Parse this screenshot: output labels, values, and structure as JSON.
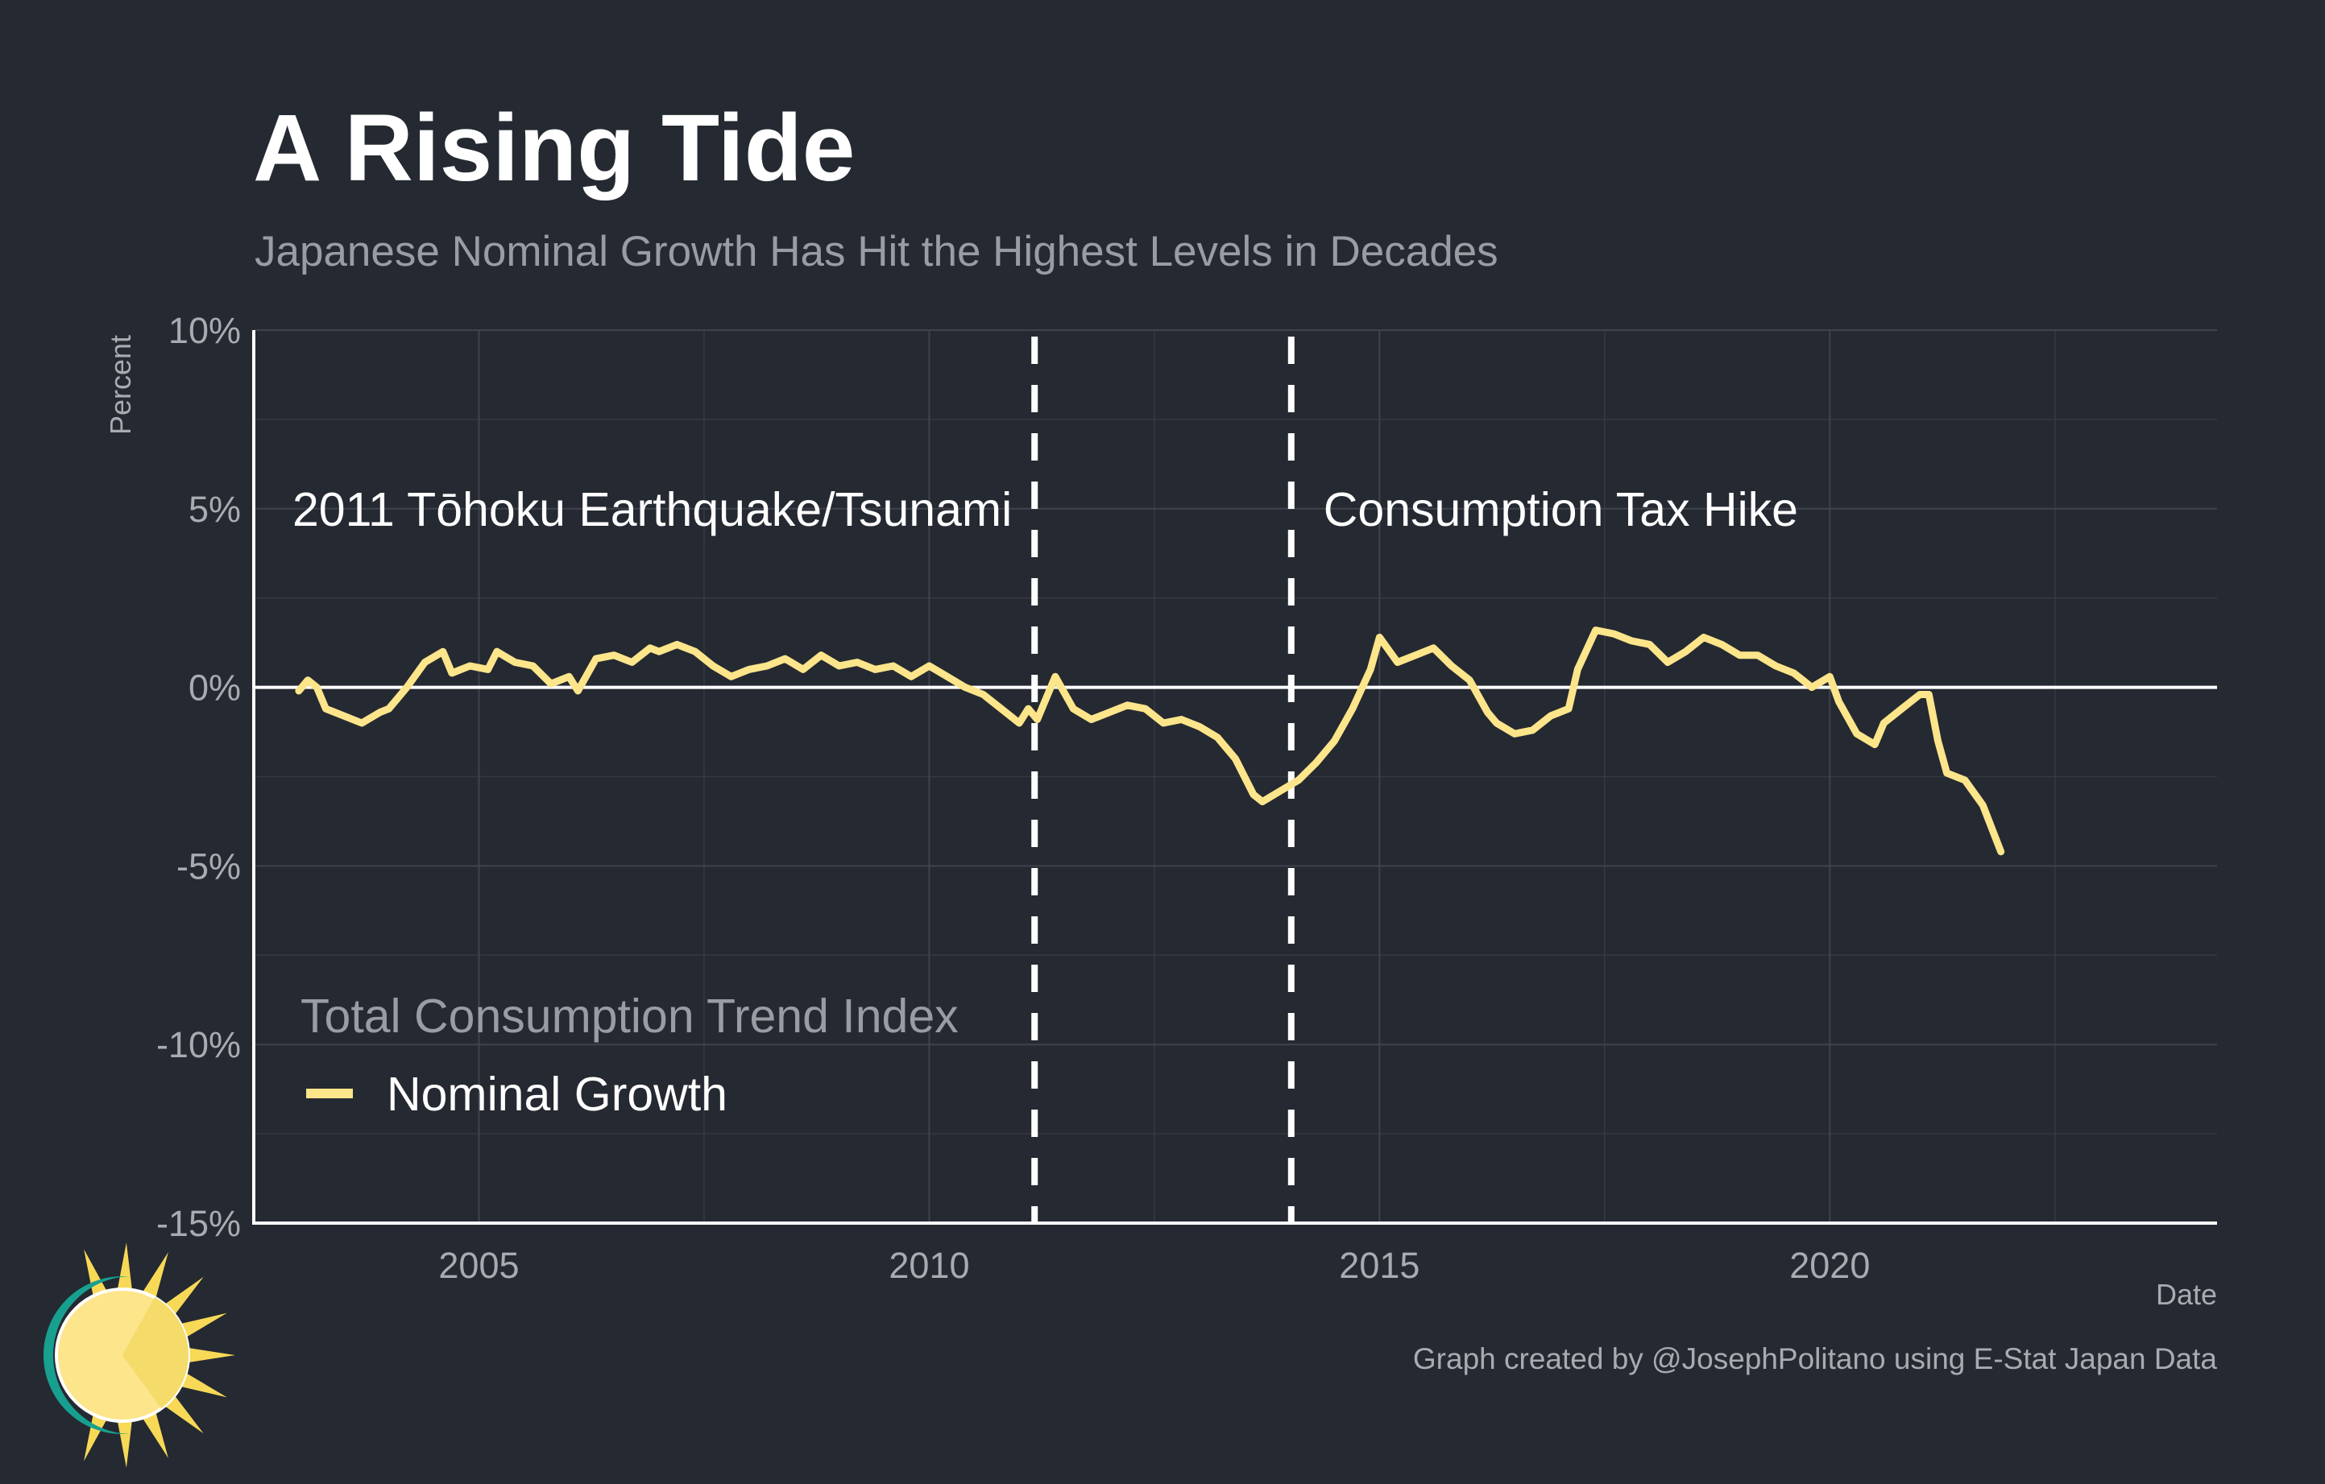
{
  "chart_data": {
    "type": "line",
    "title": "A Rising Tide",
    "subtitle": "Japanese Nominal Growth Has Hit the Highest Levels in Decades",
    "xlabel": "Date",
    "ylabel": "Percent",
    "caption": "Graph created by @JosephPolitano using E-Stat Japan Data",
    "xlim": [
      2002.5,
      2024.3
    ],
    "ylim": [
      -15,
      10
    ],
    "x_ticks": [
      {
        "value": 2005,
        "label": "2005"
      },
      {
        "value": 2010,
        "label": "2010"
      },
      {
        "value": 2015,
        "label": "2015"
      },
      {
        "value": 2020,
        "label": "2020"
      }
    ],
    "y_ticks": [
      {
        "value": 10,
        "label": "10%"
      },
      {
        "value": 5,
        "label": "5%"
      },
      {
        "value": 0,
        "label": "0%"
      },
      {
        "value": -5,
        "label": "-5%"
      },
      {
        "value": -10,
        "label": "-10%"
      },
      {
        "value": -15,
        "label": "-15%"
      }
    ],
    "grid": true,
    "legend": {
      "title": "Total Consumption Trend Index",
      "placement": "bottom-left"
    },
    "annotations": [
      {
        "x": 2011.17,
        "label": "2011 Tōhoku Earthquake/Tsunami",
        "label_side": "left"
      },
      {
        "x": 2014.02,
        "label": "Consumption Tax Hike",
        "label_side": "right"
      }
    ],
    "series": [
      {
        "name": "Nominal Growth",
        "color": "#fce58a",
        "points": [
          [
            2003.0,
            -0.1
          ],
          [
            2003.1,
            0.2
          ],
          [
            2003.2,
            0.0
          ],
          [
            2003.3,
            -0.6
          ],
          [
            2003.5,
            -0.8
          ],
          [
            2003.7,
            -1.0
          ],
          [
            2003.9,
            -0.7
          ],
          [
            2004.0,
            -0.6
          ],
          [
            2004.2,
            0.0
          ],
          [
            2004.4,
            0.7
          ],
          [
            2004.6,
            1.0
          ],
          [
            2004.7,
            0.4
          ],
          [
            2004.9,
            0.6
          ],
          [
            2005.1,
            0.5
          ],
          [
            2005.2,
            1.0
          ],
          [
            2005.4,
            0.7
          ],
          [
            2005.6,
            0.6
          ],
          [
            2005.8,
            0.1
          ],
          [
            2006.0,
            0.3
          ],
          [
            2006.1,
            -0.1
          ],
          [
            2006.3,
            0.8
          ],
          [
            2006.5,
            0.9
          ],
          [
            2006.7,
            0.7
          ],
          [
            2006.9,
            1.1
          ],
          [
            2007.0,
            1.0
          ],
          [
            2007.2,
            1.2
          ],
          [
            2007.4,
            1.0
          ],
          [
            2007.6,
            0.6
          ],
          [
            2007.8,
            0.3
          ],
          [
            2008.0,
            0.5
          ],
          [
            2008.2,
            0.6
          ],
          [
            2008.4,
            0.8
          ],
          [
            2008.6,
            0.5
          ],
          [
            2008.8,
            0.9
          ],
          [
            2009.0,
            0.6
          ],
          [
            2009.2,
            0.7
          ],
          [
            2009.4,
            0.5
          ],
          [
            2009.6,
            0.6
          ],
          [
            2009.8,
            0.3
          ],
          [
            2010.0,
            0.6
          ],
          [
            2010.2,
            0.3
          ],
          [
            2010.4,
            0.0
          ],
          [
            2010.6,
            -0.2
          ],
          [
            2010.8,
            -0.6
          ],
          [
            2011.0,
            -1.0
          ],
          [
            2011.1,
            -0.6
          ],
          [
            2011.2,
            -0.9
          ],
          [
            2011.4,
            0.3
          ],
          [
            2011.6,
            -0.6
          ],
          [
            2011.8,
            -0.9
          ],
          [
            2012.0,
            -0.7
          ],
          [
            2012.2,
            -0.5
          ],
          [
            2012.4,
            -0.6
          ],
          [
            2012.6,
            -1.0
          ],
          [
            2012.8,
            -0.9
          ],
          [
            2013.0,
            -1.1
          ],
          [
            2013.2,
            -1.4
          ],
          [
            2013.4,
            -2.0
          ],
          [
            2013.6,
            -3.0
          ],
          [
            2013.7,
            -3.2
          ],
          [
            2013.9,
            -2.9
          ],
          [
            2014.1,
            -2.6
          ],
          [
            2014.3,
            -2.1
          ],
          [
            2014.5,
            -1.5
          ],
          [
            2014.7,
            -0.6
          ],
          [
            2014.9,
            0.5
          ],
          [
            2015.0,
            1.4
          ],
          [
            2015.2,
            0.7
          ],
          [
            2015.4,
            0.9
          ],
          [
            2015.6,
            1.1
          ],
          [
            2015.8,
            0.6
          ],
          [
            2016.0,
            0.2
          ],
          [
            2016.2,
            -0.7
          ],
          [
            2016.3,
            -1.0
          ],
          [
            2016.5,
            -1.3
          ],
          [
            2016.7,
            -1.2
          ],
          [
            2016.9,
            -0.8
          ],
          [
            2017.1,
            -0.6
          ],
          [
            2017.2,
            0.5
          ],
          [
            2017.4,
            1.6
          ],
          [
            2017.6,
            1.5
          ],
          [
            2017.8,
            1.3
          ],
          [
            2018.0,
            1.2
          ],
          [
            2018.2,
            0.7
          ],
          [
            2018.4,
            1.0
          ],
          [
            2018.6,
            1.4
          ],
          [
            2018.8,
            1.2
          ],
          [
            2019.0,
            0.9
          ],
          [
            2019.2,
            0.9
          ],
          [
            2019.4,
            0.6
          ],
          [
            2019.6,
            0.4
          ],
          [
            2019.7,
            0.2
          ],
          [
            2019.8,
            0.0
          ],
          [
            2020.0,
            0.3
          ],
          [
            2020.1,
            -0.4
          ],
          [
            2020.3,
            -1.3
          ],
          [
            2020.5,
            -1.6
          ],
          [
            2020.6,
            -1.0
          ],
          [
            2020.8,
            -0.6
          ],
          [
            2021.0,
            -0.2
          ],
          [
            2021.1,
            -0.2
          ],
          [
            2021.2,
            -1.5
          ],
          [
            2021.3,
            -2.4
          ],
          [
            2021.5,
            -2.6
          ],
          [
            2021.7,
            -3.3
          ],
          [
            2021.9,
            -4.6
          ]
        ]
      }
    ]
  }
}
